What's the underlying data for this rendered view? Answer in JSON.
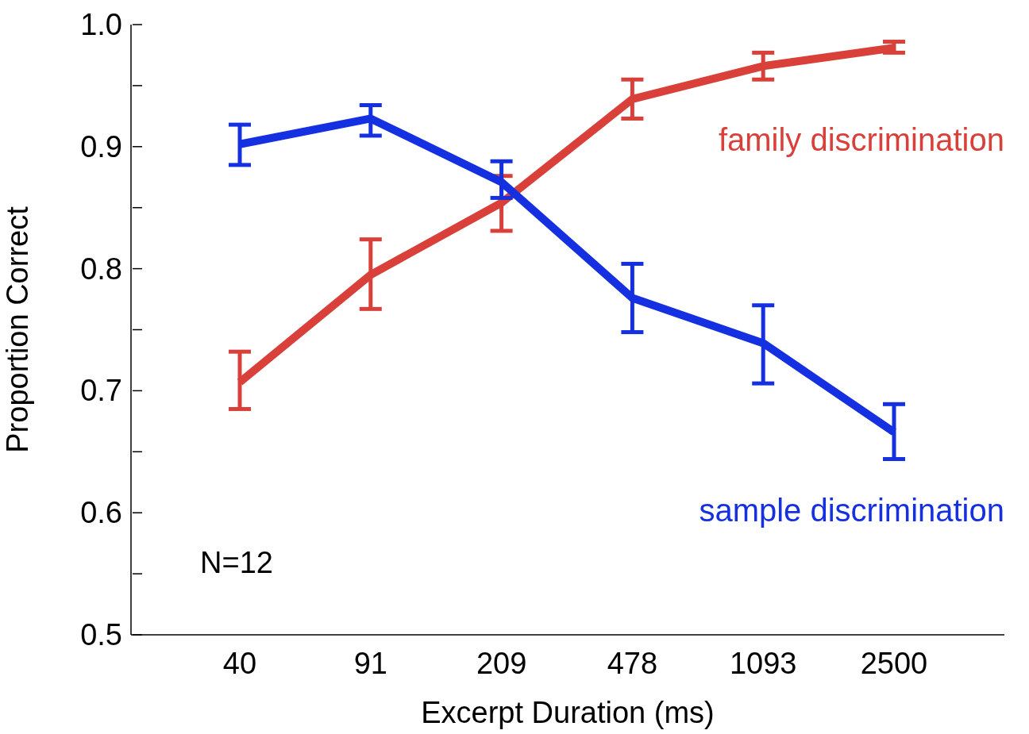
{
  "chart_data": {
    "type": "line",
    "xlabel": "Excerpt Duration (ms)",
    "ylabel": "Proportion Correct",
    "categories": [
      "40",
      "91",
      "209",
      "478",
      "1093",
      "2500"
    ],
    "series": [
      {
        "name": "family discrimination",
        "color": "#d9403a",
        "values": [
          0.707,
          0.795,
          0.854,
          0.939,
          0.966,
          0.981
        ],
        "errors": [
          [
            0.685,
            0.732
          ],
          [
            0.767,
            0.824
          ],
          [
            0.831,
            0.876
          ],
          [
            0.923,
            0.955
          ],
          [
            0.955,
            0.977
          ],
          [
            0.977,
            0.986
          ]
        ]
      },
      {
        "name": "sample discrimination",
        "color": "#1430e0",
        "values": [
          0.902,
          0.923,
          0.871,
          0.776,
          0.739,
          0.666
        ],
        "errors": [
          [
            0.885,
            0.918
          ],
          [
            0.909,
            0.934
          ],
          [
            0.858,
            0.888
          ],
          [
            0.748,
            0.804
          ],
          [
            0.706,
            0.77
          ],
          [
            0.644,
            0.689
          ]
        ]
      }
    ],
    "ylim": [
      0.5,
      1
    ],
    "yticks": [
      0.5,
      {
        "value": 0.55,
        "label": null
      },
      0.6,
      {
        "value": 0.65,
        "label": null
      },
      0.7,
      {
        "value": 0.75,
        "label": null
      },
      0.8,
      {
        "value": 0.85,
        "label": null
      },
      0.9,
      {
        "value": 0.95,
        "label": null
      },
      {
        "value": 1,
        "label": "1.0"
      }
    ],
    "annotations": [
      "N=12"
    ],
    "marker": "none",
    "line_style": "solid"
  }
}
